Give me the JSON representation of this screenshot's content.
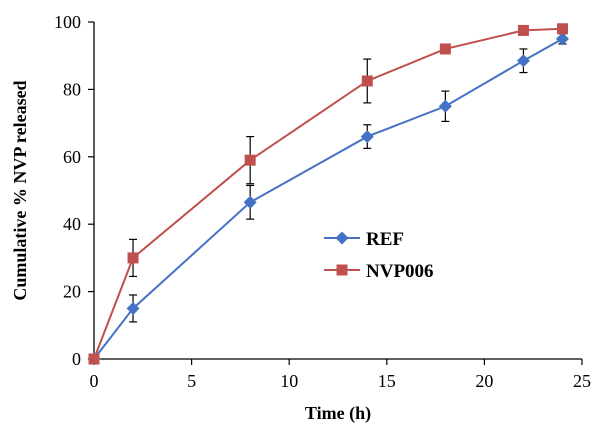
{
  "chart_data": {
    "type": "line",
    "title": "",
    "xlabel": "Time (h)",
    "ylabel": "Cumulative % NVP released",
    "xlim": [
      0,
      25
    ],
    "ylim": [
      0,
      100
    ],
    "x_ticks": [
      0,
      5,
      10,
      15,
      20,
      25
    ],
    "y_ticks": [
      0,
      20,
      40,
      60,
      80,
      100
    ],
    "grid": false,
    "legend_position": "center-right",
    "series": [
      {
        "name": "REF",
        "color": "#4472C4",
        "marker": "diamond",
        "x": [
          0,
          2,
          8,
          14,
          18,
          22,
          24
        ],
        "y": [
          0,
          15,
          46.5,
          66,
          75,
          88.5,
          95
        ],
        "err": [
          0,
          4,
          5,
          3.5,
          4.5,
          3.5,
          1.5
        ]
      },
      {
        "name": "NVP006",
        "color": "#C0504D",
        "marker": "square",
        "x": [
          0,
          2,
          8,
          14,
          18,
          22,
          24
        ],
        "y": [
          0,
          30,
          59,
          82.5,
          92,
          97.5,
          98
        ],
        "err": [
          0,
          5.5,
          7,
          6.5,
          0,
          0,
          0
        ]
      }
    ]
  }
}
